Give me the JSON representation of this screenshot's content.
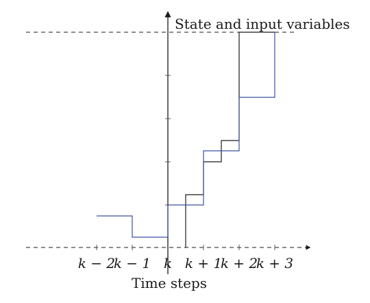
{
  "diagram": {
    "y_axis_label": "State and input variables",
    "x_axis_label": "Time steps",
    "x_tick_labels": [
      "k − 2",
      "k − 1",
      "k",
      "k + 1",
      "k + 2",
      "k + 3"
    ],
    "colors": {
      "state_trajectory": "#1a1a1a",
      "input_trajectory": "#3a4fa0",
      "axes": "#1a1a1a",
      "bound_lines": "#1a1a1a"
    }
  }
}
